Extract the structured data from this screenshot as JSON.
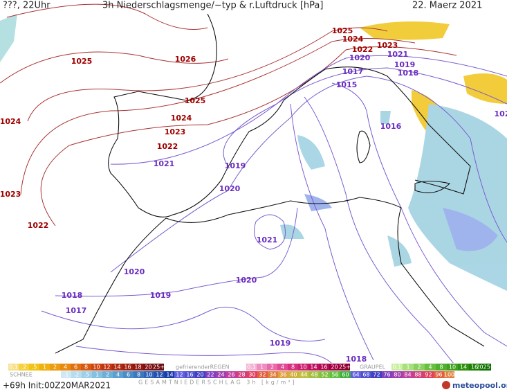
{
  "header": {
    "time": "???, 22Uhr",
    "title": "3h Niederschlagsmenge/−typ & r.Luftdruck [hPa]",
    "date": "22. Maerz 2021"
  },
  "isobar_labels": [
    "1025",
    "1024",
    "1022",
    "1023",
    "1021",
    "1020",
    "1019",
    "1018",
    "1017",
    "1015",
    "1016",
    "1025",
    "1026",
    "1025",
    "1024",
    "1023",
    "1022",
    "1021",
    "1019",
    "1020",
    "1021",
    "1020",
    "1020",
    "1019",
    "1018",
    "1017",
    "1019",
    "1018",
    "1024",
    "1023",
    "1022",
    "102"
  ],
  "legend": {
    "rain": {
      "scale": [
        "0.1",
        ".2",
        ".5",
        "1",
        "2",
        "4",
        "6",
        "8",
        "10",
        "12",
        "14",
        "16",
        "18",
        "20",
        "25+"
      ]
    },
    "freezing_rain": {
      "label": "gefrierenderREGEN",
      "scale": [
        "0.1",
        "1",
        "2",
        "4",
        "8",
        "10",
        "14",
        "16",
        "20",
        "25+"
      ]
    },
    "graupel": {
      "label": "GRAUPEL",
      "scale": [
        "0.1",
        "1",
        "2",
        "4",
        "8",
        "10",
        "14",
        "16",
        "2025+"
      ]
    },
    "snow": {
      "label": "SCHNEE",
      "scale": [
        ".1",
        ".2",
        ".5",
        "1",
        "2",
        "4",
        "6",
        "8",
        "10",
        "12",
        "14"
      ]
    },
    "total": {
      "label": "GESAMTNIEDERSCHLAG 3h [kg/m²]",
      "scale": [
        "12",
        "16",
        "20",
        "22",
        "24",
        "26",
        "28",
        "30",
        "32",
        "34",
        "36",
        "40",
        "44",
        "48",
        "52",
        "56",
        "60",
        "64",
        "68",
        "72",
        "76",
        "80",
        "84",
        "88",
        "92",
        "96",
        "100"
      ]
    }
  },
  "footer": {
    "init": "+69h Init:00Z20MAR2021",
    "logo": "meteopool.org"
  }
}
